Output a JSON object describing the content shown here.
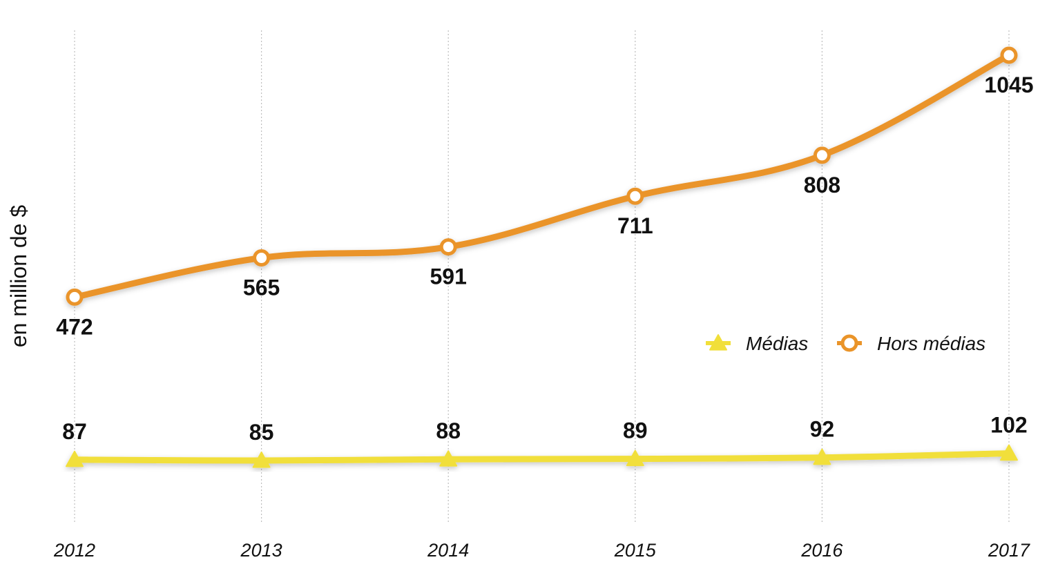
{
  "chart_data": {
    "type": "line",
    "x": [
      "2012",
      "2013",
      "2014",
      "2015",
      "2016",
      "2017"
    ],
    "ylabel": "en million de $",
    "ylim": [
      0,
      1150
    ],
    "grid": "vertical-dotted",
    "legend_position": "right",
    "series": [
      {
        "name": "Médias",
        "values": [
          87,
          85,
          88,
          89,
          92,
          102
        ],
        "color": "#f1df3a",
        "marker": "triangle",
        "label_position": "above"
      },
      {
        "name": "Hors médias",
        "values": [
          472,
          565,
          591,
          711,
          808,
          1045
        ],
        "color": "#ea9429",
        "marker": "circle",
        "label_position": "below"
      }
    ]
  }
}
